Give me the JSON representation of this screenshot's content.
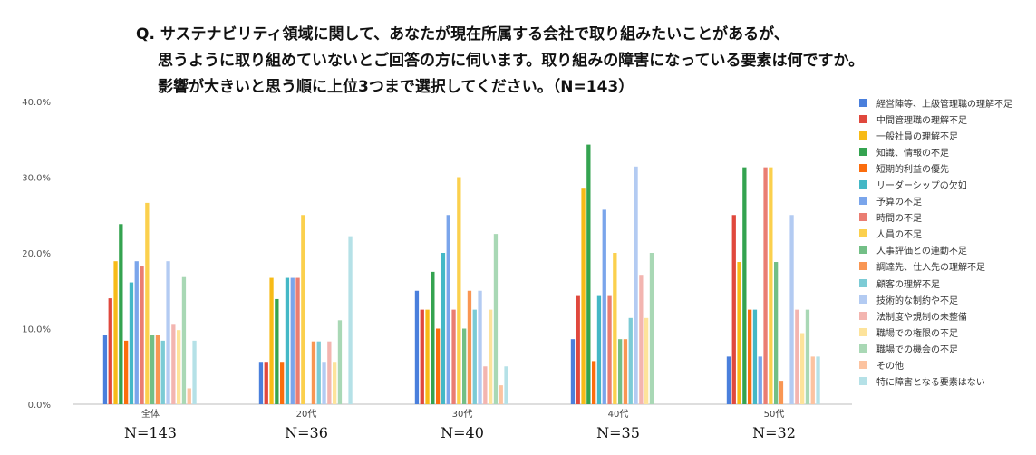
{
  "title": {
    "line1": "Q. サステナビリティ領域に関して、あなたが現在所属する会社で取り組みたいことがあるが、",
    "line2": "思うように取り組めていないとご回答の方に伺います。取り組みの障害になっている要素は何ですか。",
    "line3": "影響が大きいと思う順に上位3つまで選択してください。（N=143）"
  },
  "chart_data": {
    "type": "bar",
    "categories": [
      "全体",
      "20代",
      "30代",
      "40代",
      "50代"
    ],
    "n_labels": [
      "N=143",
      "N=36",
      "N=40",
      "N=35",
      "N=32"
    ],
    "ylim": [
      0,
      40
    ],
    "yticks": [
      "0.0%",
      "10.0%",
      "20.0%",
      "30.0%",
      "40.0%"
    ],
    "grid": false,
    "legend_position": "right",
    "series": [
      {
        "name": "経営陣等、上級管理職の理解不足",
        "color": "#4a7fdc",
        "values": [
          9.1,
          5.6,
          15.0,
          8.6,
          6.3
        ]
      },
      {
        "name": "中間管理職の理解不足",
        "color": "#e0483d",
        "values": [
          14.0,
          5.6,
          12.5,
          14.3,
          25.0
        ]
      },
      {
        "name": "一般社員の理解不足",
        "color": "#f7bb17",
        "values": [
          18.9,
          16.7,
          12.5,
          28.6,
          18.8
        ]
      },
      {
        "name": "知識、情報の不足",
        "color": "#34a350",
        "values": [
          23.8,
          13.9,
          17.5,
          34.3,
          31.3
        ]
      },
      {
        "name": "短期的利益の優先",
        "color": "#fb6d0d",
        "values": [
          8.4,
          5.6,
          10.0,
          5.7,
          12.5
        ]
      },
      {
        "name": "リーダーシップの欠如",
        "color": "#44b8c6",
        "values": [
          16.1,
          16.7,
          20.0,
          14.3,
          12.5
        ]
      },
      {
        "name": "予算の不足",
        "color": "#7aa5eb",
        "values": [
          18.9,
          16.7,
          25.0,
          25.7,
          6.3
        ]
      },
      {
        "name": "時間の不足",
        "color": "#ea7d72",
        "values": [
          18.2,
          16.7,
          12.5,
          14.3,
          31.3
        ]
      },
      {
        "name": "人員の不足",
        "color": "#fbd04d",
        "values": [
          26.6,
          25.0,
          30.0,
          20.0,
          31.3
        ]
      },
      {
        "name": "人事評価との連動不足",
        "color": "#73bf86",
        "values": [
          9.1,
          0.0,
          10.0,
          8.6,
          18.8
        ]
      },
      {
        "name": "調達先、仕入先の理解不足",
        "color": "#f99653",
        "values": [
          9.1,
          8.3,
          15.0,
          8.6,
          3.1
        ]
      },
      {
        "name": "顧客の理解不足",
        "color": "#7ccbd5",
        "values": [
          8.4,
          8.3,
          12.5,
          11.4,
          0.0
        ]
      },
      {
        "name": "技術的な制約や不足",
        "color": "#b3cbf2",
        "values": [
          18.9,
          5.6,
          15.0,
          31.4,
          25.0
        ]
      },
      {
        "name": "法制度や規制の未整備",
        "color": "#f3b5b0",
        "values": [
          10.5,
          8.3,
          5.0,
          17.1,
          12.5
        ]
      },
      {
        "name": "職場での権限の不足",
        "color": "#fde39b",
        "values": [
          9.8,
          5.6,
          12.5,
          11.4,
          9.4
        ]
      },
      {
        "name": "職場での機会の不足",
        "color": "#a9d8b5",
        "values": [
          16.8,
          11.1,
          22.5,
          20.0,
          12.5
        ]
      },
      {
        "name": "その他",
        "color": "#fcc3a0",
        "values": [
          2.1,
          0.0,
          2.5,
          0.0,
          6.3
        ]
      },
      {
        "name": "特に障害となる要素はない",
        "color": "#b5e1e7",
        "values": [
          8.4,
          22.2,
          5.0,
          0.0,
          6.3
        ]
      }
    ]
  }
}
